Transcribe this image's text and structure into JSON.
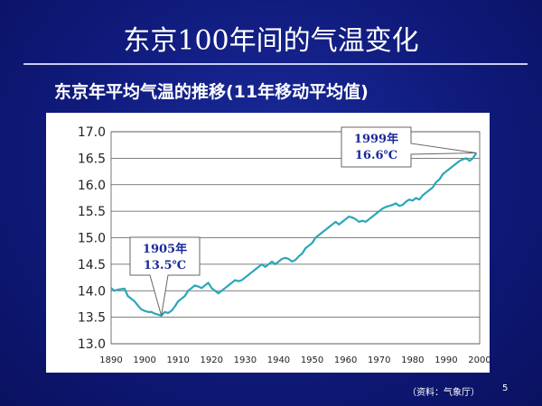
{
  "slide": {
    "title": "东京100年间的气温变化",
    "subtitle": "东京年平均气温的推移(11年移动平均值)",
    "source": "（资料：气象厅）",
    "page_number": "5",
    "background_color": "#10197a",
    "text_color": "#ffffff"
  },
  "chart_data": {
    "type": "line",
    "title": "",
    "xlabel": "",
    "ylabel": "",
    "xlim": [
      1890,
      2000
    ],
    "ylim": [
      13.0,
      17.0
    ],
    "x_ticks": [
      1890,
      1900,
      1910,
      1920,
      1930,
      1940,
      1950,
      1960,
      1970,
      1980,
      1990,
      2000
    ],
    "y_ticks": [
      "17.0",
      "16.5",
      "16.0",
      "15.5",
      "15.0",
      "14.5",
      "14.0",
      "13.5",
      "13.0"
    ],
    "grid": "horizontal",
    "line_color": "#2aa6b8",
    "series": [
      {
        "x": [
          1890,
          1891,
          1892,
          1893,
          1894,
          1895,
          1896,
          1897,
          1898,
          1899,
          1900,
          1901,
          1902,
          1903,
          1904,
          1905,
          1906,
          1907,
          1908,
          1909,
          1910,
          1911,
          1912,
          1913,
          1914,
          1915,
          1916,
          1917,
          1918,
          1919,
          1920,
          1921,
          1922,
          1923,
          1924,
          1925,
          1926,
          1927,
          1928,
          1929,
          1930,
          1931,
          1932,
          1933,
          1934,
          1935,
          1936,
          1937,
          1938,
          1939,
          1940,
          1941,
          1942,
          1943,
          1944,
          1945,
          1946,
          1947,
          1948,
          1949,
          1950,
          1951,
          1952,
          1953,
          1954,
          1955,
          1956,
          1957,
          1958,
          1959,
          1960,
          1961,
          1962,
          1963,
          1964,
          1965,
          1966,
          1967,
          1968,
          1969,
          1970,
          1971,
          1972,
          1973,
          1974,
          1975,
          1976,
          1977,
          1978,
          1979,
          1980,
          1981,
          1982,
          1983,
          1984,
          1985,
          1986,
          1987,
          1988,
          1989,
          1990,
          1991,
          1992,
          1993,
          1994,
          1995,
          1996,
          1997,
          1998,
          1999
        ],
        "values": [
          14.05,
          14.0,
          14.02,
          14.03,
          14.04,
          13.9,
          13.85,
          13.8,
          13.72,
          13.65,
          13.62,
          13.6,
          13.6,
          13.57,
          13.55,
          13.53,
          13.6,
          13.58,
          13.62,
          13.7,
          13.8,
          13.85,
          13.9,
          14.0,
          14.05,
          14.1,
          14.08,
          14.05,
          14.1,
          14.15,
          14.05,
          14.0,
          13.95,
          14.0,
          14.05,
          14.1,
          14.15,
          14.2,
          14.18,
          14.2,
          14.25,
          14.3,
          14.35,
          14.4,
          14.45,
          14.5,
          14.45,
          14.5,
          14.55,
          14.5,
          14.55,
          14.6,
          14.62,
          14.6,
          14.55,
          14.58,
          14.65,
          14.7,
          14.8,
          14.85,
          14.9,
          15.0,
          15.05,
          15.1,
          15.15,
          15.2,
          15.25,
          15.3,
          15.25,
          15.3,
          15.35,
          15.4,
          15.38,
          15.35,
          15.3,
          15.32,
          15.3,
          15.35,
          15.4,
          15.45,
          15.5,
          15.55,
          15.58,
          15.6,
          15.62,
          15.65,
          15.6,
          15.62,
          15.68,
          15.72,
          15.7,
          15.75,
          15.72,
          15.8,
          15.85,
          15.9,
          15.95,
          16.05,
          16.1,
          16.2,
          16.25,
          16.3,
          16.35,
          16.4,
          16.45,
          16.48,
          16.5,
          16.45,
          16.5,
          16.6
        ]
      }
    ],
    "annotations": [
      {
        "line1": "1905年",
        "line2": "13.5℃",
        "x": 1905,
        "y": 13.53
      },
      {
        "line1": "1999年",
        "line2": "16.6℃",
        "x": 1999,
        "y": 16.6
      }
    ]
  }
}
